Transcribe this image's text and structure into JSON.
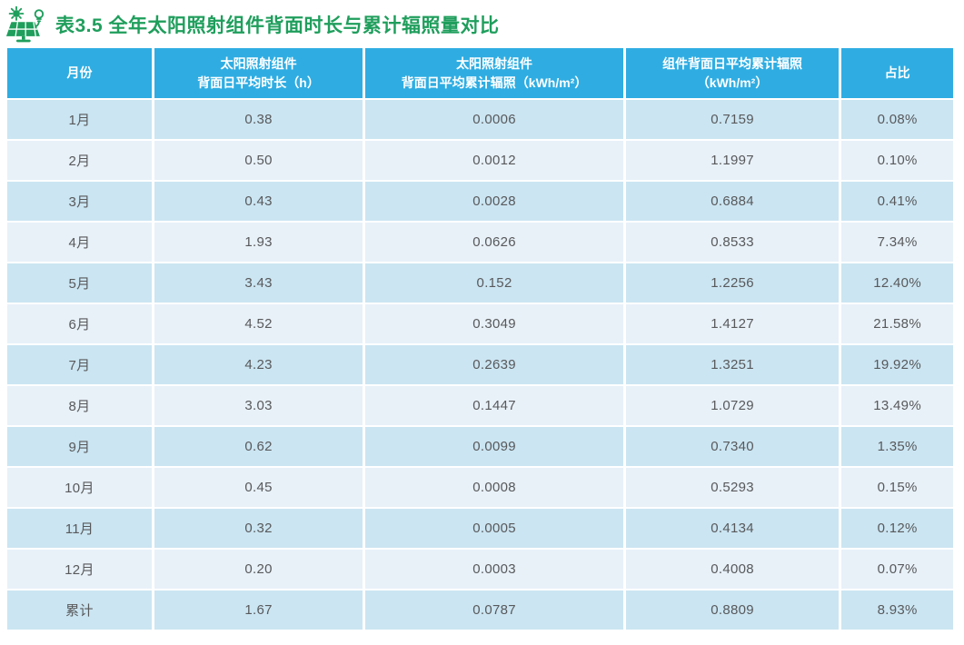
{
  "title": {
    "text": "表3.5 全年太阳照射组件背面时长与累计辐照量对比",
    "color": "#1f9e5c",
    "icon": "solar-panel-sun-bulb-icon"
  },
  "colors": {
    "header_bg": "#2fade2",
    "header_text": "#ffffff",
    "row_odd_bg": "#cbe5f2",
    "row_even_bg": "#e8f1f8",
    "cell_text": "#58595b",
    "title_green": "#1f9e5c",
    "grid_gap": "#ffffff"
  },
  "table": {
    "headers": [
      [
        "月份"
      ],
      [
        "太阳照射组件",
        "背面日平均时长（h）"
      ],
      [
        "太阳照射组件",
        "背面日平均累计辐照（kWh/m²）"
      ],
      [
        "组件背面日平均累计辐照",
        "（kWh/m²）"
      ],
      [
        "占比"
      ]
    ],
    "header_names": [
      "col-header-month",
      "col-header-back-daily-avg-hours",
      "col-header-back-daily-avg-cumulative-irradiation",
      "col-header-module-back-daily-avg-cumulative-irradiation",
      "col-header-ratio"
    ],
    "rows": [
      [
        "1月",
        "0.38",
        "0.0006",
        "0.7159",
        "0.08%"
      ],
      [
        "2月",
        "0.50",
        "0.0012",
        "1.1997",
        "0.10%"
      ],
      [
        "3月",
        "0.43",
        "0.0028",
        "0.6884",
        "0.41%"
      ],
      [
        "4月",
        "1.93",
        "0.0626",
        "0.8533",
        "7.34%"
      ],
      [
        "5月",
        "3.43",
        "0.152",
        "1.2256",
        "12.40%"
      ],
      [
        "6月",
        "4.52",
        "0.3049",
        "1.4127",
        "21.58%"
      ],
      [
        "7月",
        "4.23",
        "0.2639",
        "1.3251",
        "19.92%"
      ],
      [
        "8月",
        "3.03",
        "0.1447",
        "1.0729",
        "13.49%"
      ],
      [
        "9月",
        "0.62",
        "0.0099",
        "0.7340",
        "1.35%"
      ],
      [
        "10月",
        "0.45",
        "0.0008",
        "0.5293",
        "0.15%"
      ],
      [
        "11月",
        "0.32",
        "0.0005",
        "0.4134",
        "0.12%"
      ],
      [
        "12月",
        "0.20",
        "0.0003",
        "0.4008",
        "0.07%"
      ],
      [
        "累计",
        "1.67",
        "0.0787",
        "0.8809",
        "8.93%"
      ]
    ]
  },
  "chart_data": {
    "type": "table",
    "title": "表3.5 全年太阳照射组件背面时长与累计辐照量对比",
    "columns": [
      "月份",
      "太阳照射组件背面日平均时长（h）",
      "太阳照射组件背面日平均累计辐照（kWh/m²）",
      "组件背面日平均累计辐照（kWh/m²）",
      "占比"
    ],
    "rows": [
      [
        "1月",
        0.38,
        0.0006,
        0.7159,
        "0.08%"
      ],
      [
        "2月",
        0.5,
        0.0012,
        1.1997,
        "0.10%"
      ],
      [
        "3月",
        0.43,
        0.0028,
        0.6884,
        "0.41%"
      ],
      [
        "4月",
        1.93,
        0.0626,
        0.8533,
        "7.34%"
      ],
      [
        "5月",
        3.43,
        0.152,
        1.2256,
        "12.40%"
      ],
      [
        "6月",
        4.52,
        0.3049,
        1.4127,
        "21.58%"
      ],
      [
        "7月",
        4.23,
        0.2639,
        1.3251,
        "19.92%"
      ],
      [
        "8月",
        3.03,
        0.1447,
        1.0729,
        "13.49%"
      ],
      [
        "9月",
        0.62,
        0.0099,
        0.734,
        "1.35%"
      ],
      [
        "10月",
        0.45,
        0.0008,
        0.5293,
        "0.15%"
      ],
      [
        "11月",
        0.32,
        0.0005,
        0.4134,
        "0.12%"
      ],
      [
        "12月",
        0.2,
        0.0003,
        0.4008,
        "0.07%"
      ],
      [
        "累计",
        1.67,
        0.0787,
        0.8809,
        "8.93%"
      ]
    ]
  }
}
